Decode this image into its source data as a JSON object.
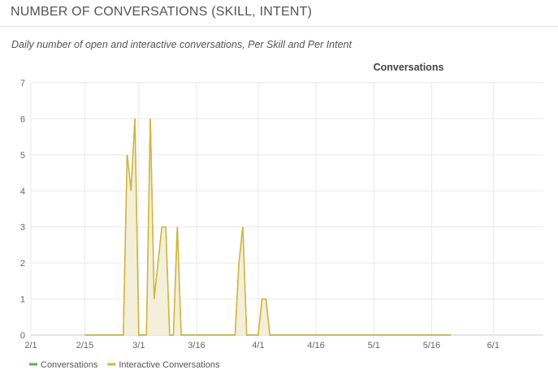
{
  "panel": {
    "title": "NUMBER OF CONVERSATIONS (SKILL, INTENT)",
    "subtitle": "Daily number of open and interactive conversations, Per Skill and Per Intent"
  },
  "colors": {
    "conversations": "#5fad56",
    "interactive": "#d4b43c",
    "interactive_fill": "#f3efd8",
    "grid": "#e9e9e9",
    "axis": "#cccccc"
  },
  "chart_data": {
    "type": "area",
    "title": "Conversations",
    "xlabel": "",
    "ylabel": "",
    "grid": true,
    "legend_position": "bottom-left",
    "ylim": [
      0,
      7
    ],
    "yticks": [
      0,
      1,
      2,
      3,
      4,
      5,
      6,
      7
    ],
    "xlim": [
      "2/1",
      "6/4"
    ],
    "xticks": [
      {
        "label": "2/1",
        "day": 0
      },
      {
        "label": "2/15",
        "day": 14
      },
      {
        "label": "3/1",
        "day": 28
      },
      {
        "label": "3/16",
        "day": 43
      },
      {
        "label": "4/1",
        "day": 59
      },
      {
        "label": "4/16",
        "day": 74
      },
      {
        "label": "5/1",
        "day": 89
      },
      {
        "label": "5/16",
        "day": 104
      },
      {
        "label": "6/1",
        "day": 120
      }
    ],
    "series": [
      {
        "name": "Conversations",
        "color": "#5fad56",
        "points": [
          [
            14,
            0
          ],
          [
            19,
            0
          ],
          [
            24,
            0
          ],
          [
            25,
            5
          ],
          [
            26,
            4
          ],
          [
            27,
            6
          ],
          [
            28,
            0
          ],
          [
            29,
            0
          ],
          [
            30,
            0
          ],
          [
            31,
            6
          ],
          [
            32,
            1
          ],
          [
            33,
            2
          ],
          [
            34,
            3
          ],
          [
            35,
            3
          ],
          [
            36,
            0
          ],
          [
            37,
            0
          ],
          [
            38,
            3
          ],
          [
            39,
            0
          ],
          [
            40,
            0
          ],
          [
            45,
            0
          ],
          [
            50,
            0
          ],
          [
            53,
            0
          ],
          [
            54,
            2
          ],
          [
            55,
            3
          ],
          [
            56,
            0
          ],
          [
            57,
            0
          ],
          [
            58,
            0
          ],
          [
            59,
            0
          ],
          [
            60,
            1
          ],
          [
            61,
            1
          ],
          [
            62,
            0
          ],
          [
            65,
            0
          ],
          [
            75,
            0
          ],
          [
            85,
            0
          ],
          [
            95,
            0
          ],
          [
            105,
            0
          ],
          [
            109,
            0
          ]
        ]
      },
      {
        "name": "Interactive Conversations",
        "color": "#d4b43c",
        "points": [
          [
            14,
            0
          ],
          [
            19,
            0
          ],
          [
            24,
            0
          ],
          [
            25,
            5
          ],
          [
            26,
            4
          ],
          [
            27,
            6
          ],
          [
            28,
            0
          ],
          [
            29,
            0
          ],
          [
            30,
            0
          ],
          [
            31,
            6
          ],
          [
            32,
            1
          ],
          [
            33,
            2
          ],
          [
            34,
            3
          ],
          [
            35,
            3
          ],
          [
            36,
            0
          ],
          [
            37,
            0
          ],
          [
            38,
            3
          ],
          [
            39,
            0
          ],
          [
            40,
            0
          ],
          [
            45,
            0
          ],
          [
            50,
            0
          ],
          [
            53,
            0
          ],
          [
            54,
            2
          ],
          [
            55,
            3
          ],
          [
            56,
            0
          ],
          [
            57,
            0
          ],
          [
            58,
            0
          ],
          [
            59,
            0
          ],
          [
            60,
            1
          ],
          [
            61,
            1
          ],
          [
            62,
            0
          ],
          [
            65,
            0
          ],
          [
            75,
            0
          ],
          [
            85,
            0
          ],
          [
            95,
            0
          ],
          [
            105,
            0
          ],
          [
            109,
            0
          ]
        ]
      }
    ]
  }
}
